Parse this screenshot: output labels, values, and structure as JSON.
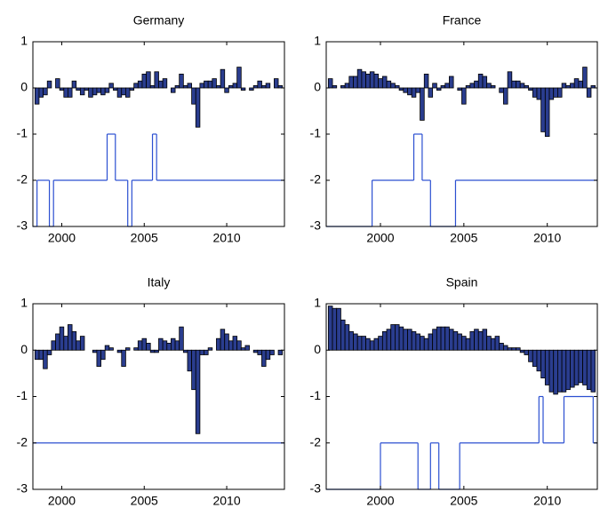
{
  "chart_data": [
    {
      "type": "bar",
      "title": "Germany",
      "xlim": [
        1998.25,
        2013.5
      ],
      "xticks": [
        2000,
        2005,
        2010
      ],
      "ylim": [
        -3,
        1
      ],
      "yticks": [
        -3,
        -2,
        -1,
        0,
        1
      ],
      "series": [
        {
          "type": "bar",
          "color": "#2a3d8f",
          "x": [
            1998.5,
            1998.75,
            1999,
            1999.25,
            1999.5,
            1999.75,
            2000,
            2000.25,
            2000.5,
            2000.75,
            2001,
            2001.25,
            2001.5,
            2001.75,
            2002,
            2002.25,
            2002.5,
            2002.75,
            2003,
            2003.25,
            2003.5,
            2003.75,
            2004,
            2004.25,
            2004.5,
            2004.75,
            2005,
            2005.25,
            2005.5,
            2005.75,
            2006,
            2006.25,
            2006.5,
            2006.75,
            2007,
            2007.25,
            2007.5,
            2007.75,
            2008,
            2008.25,
            2008.5,
            2008.75,
            2009,
            2009.25,
            2009.5,
            2009.75,
            2010,
            2010.25,
            2010.5,
            2010.75,
            2011,
            2011.25,
            2011.5,
            2011.75,
            2012,
            2012.25,
            2012.5,
            2012.75,
            2013,
            2013.25
          ],
          "values": [
            -0.35,
            -0.2,
            -0.15,
            0.15,
            0,
            0.2,
            -0.05,
            -0.2,
            -0.2,
            0.15,
            -0.05,
            -0.15,
            -0.05,
            -0.2,
            -0.15,
            -0.1,
            -0.15,
            -0.1,
            0.1,
            -0.05,
            -0.2,
            -0.15,
            -0.2,
            -0.05,
            0.1,
            0.15,
            0.3,
            0.35,
            0.05,
            0.35,
            0.15,
            0.2,
            0,
            -0.1,
            0.05,
            0.3,
            0.05,
            0.1,
            -0.35,
            -0.85,
            0.1,
            0.15,
            0.15,
            0.2,
            0.05,
            0.4,
            -0.1,
            0.05,
            0.1,
            0.45,
            -0.05,
            0,
            -0.05,
            0.05,
            0.15,
            0.05,
            0.1,
            0,
            0.2,
            0.05
          ]
        },
        {
          "type": "step",
          "color": "#2b4fd1",
          "x": [
            1998.25,
            1998.5,
            1999.25,
            1999.5,
            2002.75,
            2003.25,
            2004,
            2004.25,
            2005.5,
            2005.75
          ],
          "values": [
            -3,
            -2,
            -3,
            -2,
            -1,
            -2,
            -3,
            -2,
            -1,
            -2
          ]
        }
      ]
    },
    {
      "type": "bar",
      "title": "France",
      "xlim": [
        1996.75,
        2013
      ],
      "xticks": [
        2000,
        2005,
        2010
      ],
      "ylim": [
        -3,
        1
      ],
      "yticks": [
        -3,
        -2,
        -1,
        0,
        1
      ],
      "series": [
        {
          "type": "bar",
          "color": "#2a3d8f",
          "x": [
            1997,
            1997.25,
            1997.5,
            1997.75,
            1998,
            1998.25,
            1998.5,
            1998.75,
            1999,
            1999.25,
            1999.5,
            1999.75,
            2000,
            2000.25,
            2000.5,
            2000.75,
            2001,
            2001.25,
            2001.5,
            2001.75,
            2002,
            2002.25,
            2002.5,
            2002.75,
            2003,
            2003.25,
            2003.5,
            2003.75,
            2004,
            2004.25,
            2004.5,
            2004.75,
            2005,
            2005.25,
            2005.5,
            2005.75,
            2006,
            2006.25,
            2006.5,
            2006.75,
            2007,
            2007.25,
            2007.5,
            2007.75,
            2008,
            2008.25,
            2008.5,
            2008.75,
            2009,
            2009.25,
            2009.5,
            2009.75,
            2010,
            2010.25,
            2010.5,
            2010.75,
            2011,
            2011.25,
            2011.5,
            2011.75,
            2012,
            2012.25,
            2012.5,
            2012.75
          ],
          "values": [
            0.2,
            0.05,
            0,
            0.05,
            0.1,
            0.25,
            0.25,
            0.4,
            0.35,
            0.3,
            0.35,
            0.3,
            0.2,
            0.25,
            0.15,
            0.1,
            0.05,
            -0.05,
            -0.1,
            -0.15,
            -0.2,
            -0.1,
            -0.7,
            0.3,
            -0.2,
            0.1,
            -0.05,
            0.05,
            0.1,
            0.25,
            0,
            -0.05,
            -0.35,
            0.05,
            0.1,
            0.15,
            0.3,
            0.25,
            0.1,
            0.05,
            0,
            -0.1,
            -0.35,
            0.35,
            0.15,
            0.15,
            0.1,
            0.05,
            -0.05,
            -0.2,
            -0.25,
            -0.95,
            -1.05,
            -0.25,
            -0.2,
            -0.2,
            0.1,
            0.05,
            0.1,
            0.2,
            0.15,
            0.45,
            -0.2,
            0.05
          ]
        },
        {
          "type": "step",
          "color": "#2b4fd1",
          "x": [
            1996.75,
            1999.5,
            2002,
            2002.5,
            2003,
            2004.5
          ],
          "values": [
            -3,
            -2,
            -1,
            -2,
            -3,
            -2
          ]
        }
      ]
    },
    {
      "type": "bar",
      "title": "Italy",
      "xlim": [
        1998.25,
        2013.5
      ],
      "xticks": [
        2000,
        2005,
        2010
      ],
      "ylim": [
        -3,
        1
      ],
      "yticks": [
        -3,
        -2,
        -1,
        0,
        1
      ],
      "series": [
        {
          "type": "bar",
          "color": "#2a3d8f",
          "x": [
            1998.5,
            1998.75,
            1999,
            1999.25,
            1999.5,
            1999.75,
            2000,
            2000.25,
            2000.5,
            2000.75,
            2001,
            2001.25,
            2001.5,
            2001.75,
            2002,
            2002.25,
            2002.5,
            2002.75,
            2003,
            2003.25,
            2003.5,
            2003.75,
            2004,
            2004.25,
            2004.5,
            2004.75,
            2005,
            2005.25,
            2005.5,
            2005.75,
            2006,
            2006.25,
            2006.5,
            2006.75,
            2007,
            2007.25,
            2007.5,
            2007.75,
            2008,
            2008.25,
            2008.5,
            2008.75,
            2009,
            2009.25,
            2009.5,
            2009.75,
            2010,
            2010.25,
            2010.5,
            2010.75,
            2011,
            2011.25,
            2011.5,
            2011.75,
            2012,
            2012.25,
            2012.5,
            2012.75,
            2013,
            2013.25
          ],
          "values": [
            -0.2,
            -0.2,
            -0.4,
            -0.1,
            0.2,
            0.35,
            0.5,
            0.3,
            0.55,
            0.4,
            0.2,
            0.3,
            0,
            0,
            -0.05,
            -0.35,
            -0.2,
            0.1,
            0.05,
            0,
            -0.05,
            -0.35,
            0.05,
            0,
            0.05,
            0.2,
            0.25,
            0.15,
            -0.05,
            -0.05,
            0.25,
            0.2,
            0.15,
            0.25,
            0.2,
            0.5,
            -0.05,
            -0.45,
            -0.85,
            -1.8,
            -0.1,
            -0.1,
            0.05,
            0,
            0.25,
            0.45,
            0.35,
            0.2,
            0.3,
            0.2,
            0.05,
            0.1,
            0,
            -0.05,
            -0.1,
            -0.35,
            -0.2,
            -0.1,
            0,
            -0.1
          ]
        },
        {
          "type": "step",
          "color": "#2b4fd1",
          "x": [
            1998.25
          ],
          "values": [
            -2
          ]
        }
      ]
    },
    {
      "type": "bar",
      "title": "Spain",
      "xlim": [
        1996.75,
        2013
      ],
      "xticks": [
        2000,
        2005,
        2010
      ],
      "ylim": [
        -3,
        1
      ],
      "yticks": [
        -3,
        -2,
        -1,
        0,
        1
      ],
      "series": [
        {
          "type": "bar",
          "color": "#2a3d8f",
          "x": [
            1997,
            1997.25,
            1997.5,
            1997.75,
            1998,
            1998.25,
            1998.5,
            1998.75,
            1999,
            1999.25,
            1999.5,
            1999.75,
            2000,
            2000.25,
            2000.5,
            2000.75,
            2001,
            2001.25,
            2001.5,
            2001.75,
            2002,
            2002.25,
            2002.5,
            2002.75,
            2003,
            2003.25,
            2003.5,
            2003.75,
            2004,
            2004.25,
            2004.5,
            2004.75,
            2005,
            2005.25,
            2005.5,
            2005.75,
            2006,
            2006.25,
            2006.5,
            2006.75,
            2007,
            2007.25,
            2007.5,
            2007.75,
            2008,
            2008.25,
            2008.5,
            2008.75,
            2009,
            2009.25,
            2009.5,
            2009.75,
            2010,
            2010.25,
            2010.5,
            2010.75,
            2011,
            2011.25,
            2011.5,
            2011.75,
            2012,
            2012.25,
            2012.5,
            2012.75
          ],
          "values": [
            0.95,
            0.9,
            0.9,
            0.65,
            0.55,
            0.4,
            0.35,
            0.3,
            0.3,
            0.25,
            0.2,
            0.25,
            0.3,
            0.4,
            0.45,
            0.55,
            0.55,
            0.5,
            0.45,
            0.45,
            0.4,
            0.35,
            0.3,
            0.25,
            0.35,
            0.45,
            0.5,
            0.5,
            0.5,
            0.45,
            0.4,
            0.35,
            0.3,
            0.25,
            0.4,
            0.45,
            0.4,
            0.45,
            0.3,
            0.25,
            0.3,
            0.15,
            0.1,
            0.05,
            0.05,
            0.05,
            -0.05,
            -0.1,
            -0.25,
            -0.35,
            -0.45,
            -0.6,
            -0.75,
            -0.9,
            -0.95,
            -0.9,
            -0.9,
            -0.85,
            -0.8,
            -0.75,
            -0.7,
            -0.75,
            -0.85,
            -0.9
          ]
        },
        {
          "type": "step",
          "color": "#2b4fd1",
          "x": [
            1996.75,
            2000,
            2002.25,
            2003,
            2003.5,
            2004.75,
            2009.5,
            2009.75,
            2011,
            2012.75
          ],
          "values": [
            -3,
            -2,
            -3,
            -2,
            -3,
            -2,
            -1,
            -2,
            -1,
            -2
          ]
        }
      ]
    }
  ]
}
